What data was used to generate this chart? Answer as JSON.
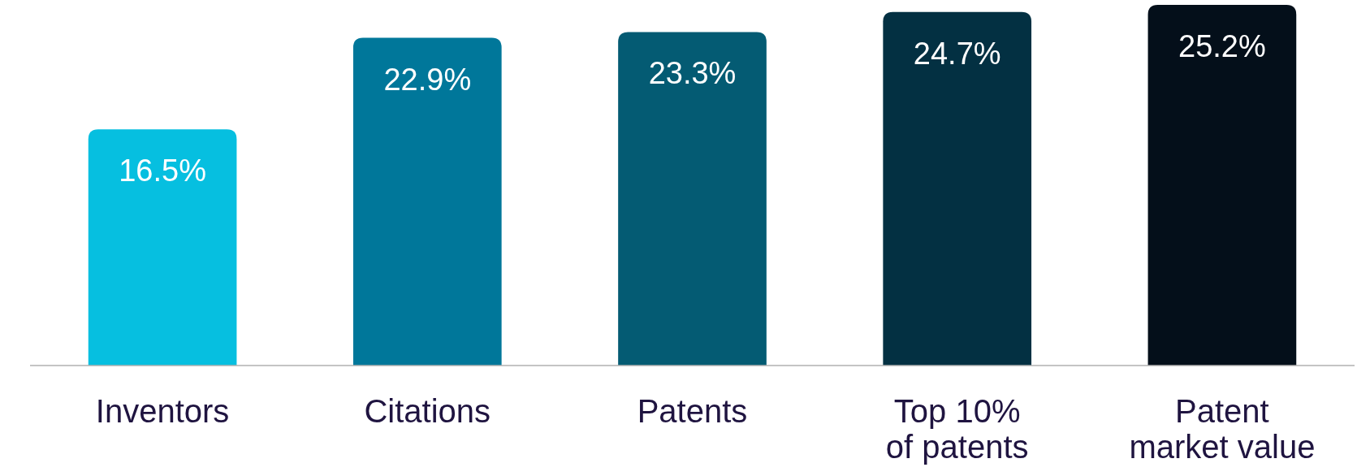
{
  "chart_data": {
    "type": "bar",
    "categories": [
      "Inventors",
      "Citations",
      "Patents",
      "Top 10% of patents",
      "Patent market value"
    ],
    "values": [
      16.5,
      22.9,
      23.3,
      24.7,
      25.2
    ],
    "colors": [
      "#06bfe0",
      "#00779a",
      "#045b73",
      "#033042",
      "#040f1a"
    ],
    "value_labels": [
      "16.5%",
      "22.9%",
      "23.3%",
      "24.7%",
      "25.2%"
    ]
  }
}
